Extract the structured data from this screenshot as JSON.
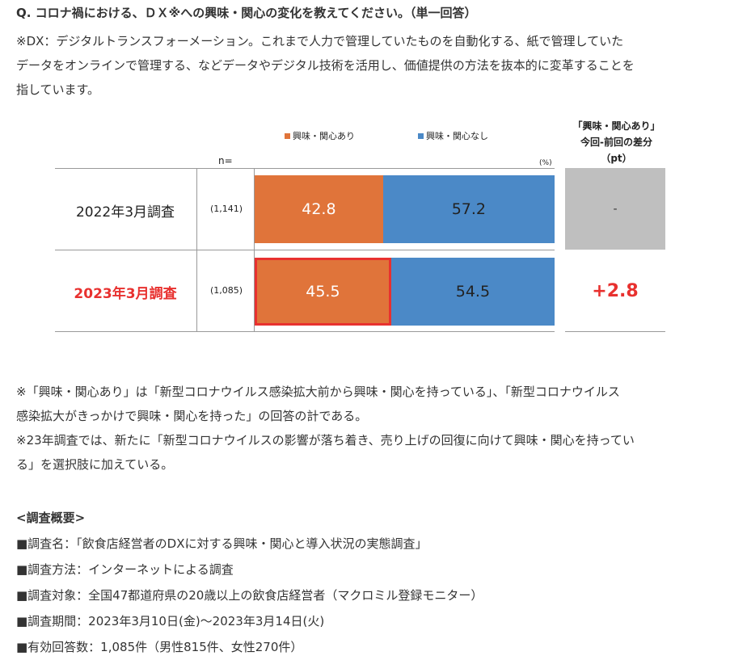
{
  "question": "Q. コロナ禍における、ＤＸ※への興味・関心の変化を教えてください。（単一回答）",
  "definition": [
    "※DX：デジタルトランスフォーメーション。これまで人力で管理していたものを自動化する、紙で管理していた",
    "データをオンラインで管理する、などデータやデジタル技術を活用し、価値提供の方法を抜本的に変革することを",
    "指しています。"
  ],
  "chart_data": {
    "type": "bar",
    "orientation": "horizontal",
    "stacked": true,
    "unit_label": "(%)",
    "n_header": "n=",
    "categories": [
      "2022年3月調査",
      "2023年3月調査"
    ],
    "n_values": [
      "(1,141)",
      "(1,085)"
    ],
    "series": [
      {
        "name": "興味・関心あり",
        "color": "#e0743a",
        "values": [
          42.8,
          45.5
        ]
      },
      {
        "name": "興味・関心なし",
        "color": "#4b89c7",
        "values": [
          57.2,
          54.5
        ]
      }
    ],
    "value_labels": [
      [
        "42.8",
        "57.2"
      ],
      [
        "45.5",
        "54.5"
      ]
    ],
    "xlim": [
      0,
      100
    ],
    "diff_header": [
      "「興味・関心あり」",
      "今回-前回の差分",
      "（pt）"
    ],
    "diff_values": [
      "-",
      "+2.8"
    ],
    "highlight_category": "2023年3月調査",
    "highlight_color": "#e8312f"
  },
  "notes": [
    "※「興味・関心あり」は「新型コロナウイルス感染拡大前から興味・関心を持っている」、「新型コロナウイルス",
    "感染拡大がきっかけで興味・関心を持った」の回答の計である。",
    "※23年調査では、新たに「新型コロナウイルスの影響が落ち着き、売り上げの回復に向けて興味・関心を持ってい",
    "る」を選択肢に加えている。"
  ],
  "summary": {
    "title": "<調査概要>",
    "items": [
      "■調査名：「飲食店経営者のDXに対する興味・関心と導入状況の実態調査」",
      "■調査方法：インターネットによる調査",
      "■調査対象：全国47都道府県の20歳以上の飲食店経営者（マクロミル登録モニター）",
      "■調査期間：2023年3月10日(金)〜2023年3月14日(火)",
      "■有効回答数：1,085件（男性815件、女性270件）"
    ]
  }
}
